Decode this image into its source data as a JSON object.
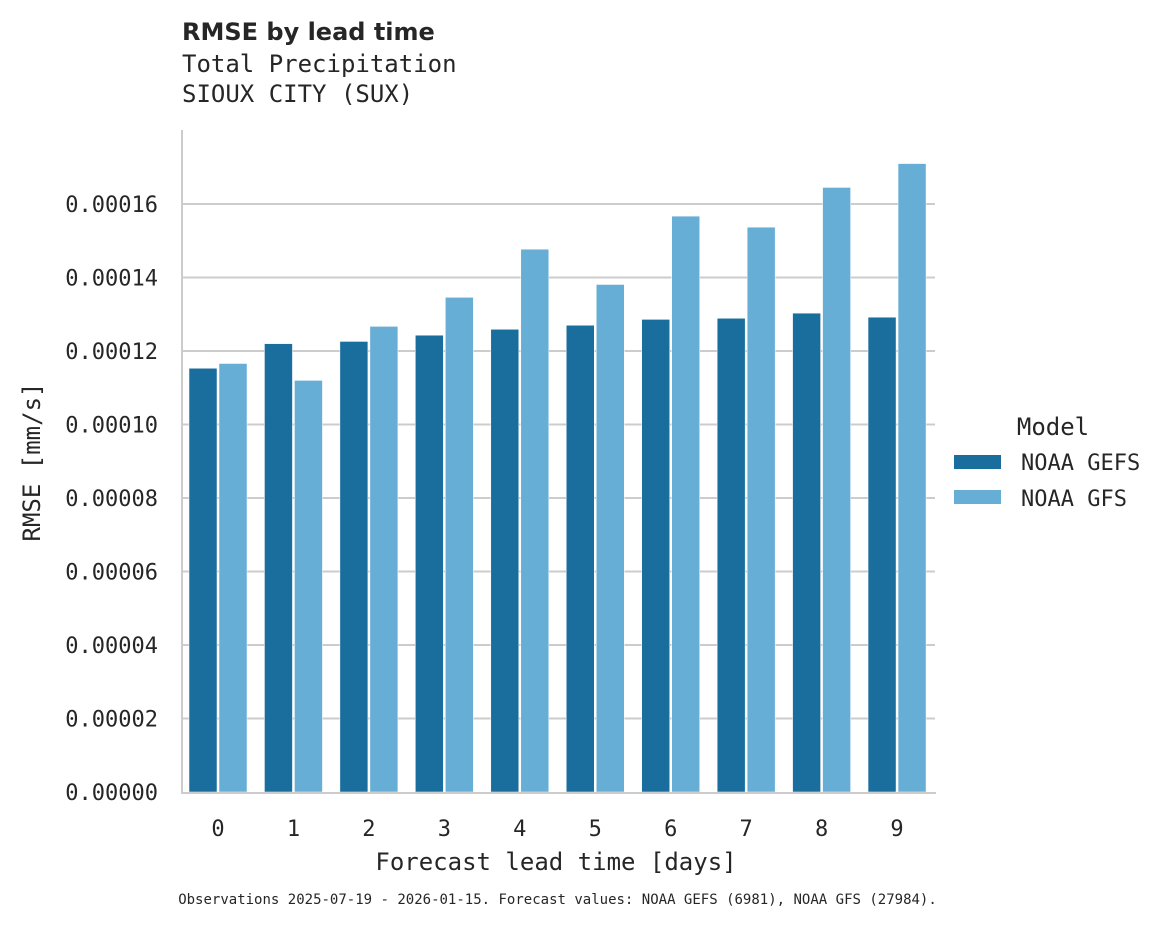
{
  "chart_data": {
    "type": "bar",
    "title": "RMSE by lead time",
    "subtitle_lines": [
      "Total Precipitation",
      "SIOUX CITY (SUX)"
    ],
    "xlabel": "Forecast lead time [days]",
    "ylabel": "RMSE [mm/s]",
    "categories": [
      "0",
      "1",
      "2",
      "3",
      "4",
      "5",
      "6",
      "7",
      "8",
      "9"
    ],
    "ylim": [
      0,
      0.00018
    ],
    "yticks": [
      "0.00000",
      "0.00002",
      "0.00004",
      "0.00006",
      "0.00008",
      "0.00010",
      "0.00012",
      "0.00014",
      "0.00016"
    ],
    "grid": "horizontal",
    "legend": {
      "title": "Model",
      "placement": "right"
    },
    "series": [
      {
        "name": "NOAA GEFS",
        "color": "#1a6e9e",
        "values": [
          0.0001153,
          0.000122,
          0.0001226,
          0.0001243,
          0.0001259,
          0.000127,
          0.0001286,
          0.0001289,
          0.0001303,
          0.0001292
        ]
      },
      {
        "name": "NOAA GFS",
        "color": "#67aed7",
        "values": [
          0.0001166,
          0.000112,
          0.0001267,
          0.0001346,
          0.0001477,
          0.0001381,
          0.0001567,
          0.0001537,
          0.0001645,
          0.000171
        ]
      }
    ],
    "footnote": "Observations 2025-07-19 - 2026-01-15. Forecast values: NOAA GEFS (6981), NOAA GFS (27984)."
  }
}
